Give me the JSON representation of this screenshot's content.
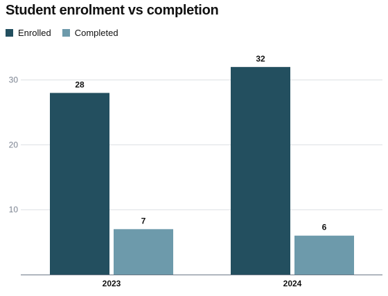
{
  "chart_data": {
    "type": "bar",
    "title": "Student enrolment vs completion",
    "categories": [
      "2023",
      "2024"
    ],
    "series": [
      {
        "name": "Enrolled",
        "values": [
          28,
          32
        ],
        "color": "#234f5f"
      },
      {
        "name": "Completed",
        "values": [
          7,
          6
        ],
        "color": "#6d9aab"
      }
    ],
    "ylim": [
      0,
      32
    ],
    "yticks": [
      10,
      20,
      30
    ],
    "grid": true,
    "legend_position": "top-left",
    "xlabel": "",
    "ylabel": ""
  }
}
